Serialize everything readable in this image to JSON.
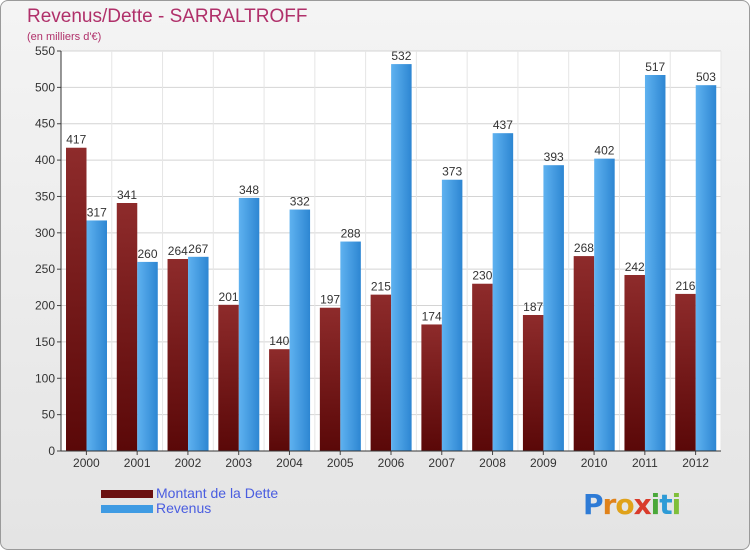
{
  "header": {
    "title": "Revenus/Dette - SARRALTROFF",
    "subtitle": "(en milliers d'€)"
  },
  "chart_data": {
    "type": "bar",
    "categories": [
      "2000",
      "2001",
      "2002",
      "2003",
      "2004",
      "2005",
      "2006",
      "2007",
      "2008",
      "2009",
      "2010",
      "2011",
      "2012"
    ],
    "series": [
      {
        "name": "Montant de la Dette",
        "color": "#7a1a1a",
        "values": [
          417,
          341,
          264,
          201,
          140,
          197,
          215,
          174,
          230,
          187,
          268,
          242,
          216
        ]
      },
      {
        "name": "Revenus",
        "color": "#3f9be3",
        "values": [
          317,
          260,
          267,
          348,
          332,
          288,
          532,
          373,
          437,
          393,
          402,
          517,
          503
        ]
      }
    ],
    "title": "Revenus/Dette - SARRALTROFF",
    "ylim": [
      0,
      550
    ],
    "yticks": [
      0,
      50,
      100,
      150,
      200,
      250,
      300,
      350,
      400,
      450,
      500,
      550
    ],
    "grid": true,
    "legend_position": "bottom-left"
  },
  "legend": {
    "items": [
      {
        "label": "Montant de la Dette",
        "color": "#7a1a1a"
      },
      {
        "label": "Revenus",
        "color": "#3f9be3"
      }
    ]
  },
  "logo": {
    "letters": [
      "P",
      "r",
      "o",
      "x",
      "i",
      "t",
      "i"
    ],
    "colors": [
      "#2e7bd6",
      "#e0821a",
      "#e0a21a",
      "#d93b2b",
      "#4aa83a",
      "#2e9bd6",
      "#7fbf3a"
    ]
  }
}
